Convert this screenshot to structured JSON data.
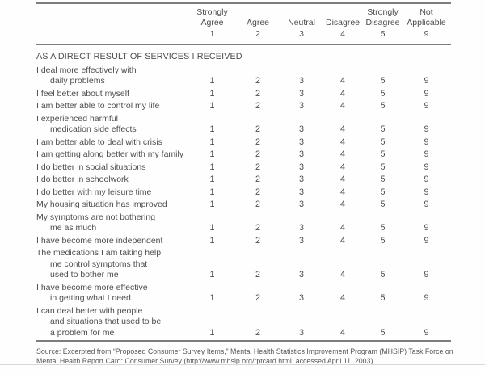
{
  "colors": {
    "text": "#4d4d4d",
    "rule": "#7d7d7d",
    "faint_rule": "#d8d8d8",
    "background": "#fefefe"
  },
  "header": {
    "columns": [
      {
        "label": "Strongly\nAgree",
        "value": "1"
      },
      {
        "label": "Agree",
        "value": "2"
      },
      {
        "label": "Neutral",
        "value": "3"
      },
      {
        "label": "Disagree",
        "value": "4"
      },
      {
        "label": "Strongly\nDisagree",
        "value": "5"
      },
      {
        "label": "Not\nApplicable",
        "value": "9"
      }
    ]
  },
  "section_header": "AS A DIRECT RESULT OF SERVICES I RECEIVED",
  "rows": [
    {
      "label": "I deal more effectively with\ndaily problems",
      "values": [
        "1",
        "2",
        "3",
        "4",
        "5",
        "9"
      ]
    },
    {
      "label": "I feel better about myself",
      "values": [
        "1",
        "2",
        "3",
        "4",
        "5",
        "9"
      ]
    },
    {
      "label": "I am better able to control my life",
      "values": [
        "1",
        "2",
        "3",
        "4",
        "5",
        "9"
      ]
    },
    {
      "label": "I experienced harmful\nmedication side effects",
      "values": [
        "1",
        "2",
        "3",
        "4",
        "5",
        "9"
      ]
    },
    {
      "label": "I am better able to deal with crisis",
      "values": [
        "1",
        "2",
        "3",
        "4",
        "5",
        "9"
      ]
    },
    {
      "label": "I am getting along better with my family",
      "values": [
        "1",
        "2",
        "3",
        "4",
        "5",
        "9"
      ]
    },
    {
      "label": "I do better in social situations",
      "values": [
        "1",
        "2",
        "3",
        "4",
        "5",
        "9"
      ]
    },
    {
      "label": "I do better in schoolwork",
      "values": [
        "1",
        "2",
        "3",
        "4",
        "5",
        "9"
      ]
    },
    {
      "label": "I do better with my leisure time",
      "values": [
        "1",
        "2",
        "3",
        "4",
        "5",
        "9"
      ]
    },
    {
      "label": "My housing situation has improved",
      "values": [
        "1",
        "2",
        "3",
        "4",
        "5",
        "9"
      ]
    },
    {
      "label": "My symptoms are not bothering\nme as much",
      "values": [
        "1",
        "2",
        "3",
        "4",
        "5",
        "9"
      ]
    },
    {
      "label": "I have become more independent",
      "values": [
        "1",
        "2",
        "3",
        "4",
        "5",
        "9"
      ]
    },
    {
      "label": "The medications I am taking help\nme control symptoms that\nused to bother me",
      "values": [
        "1",
        "2",
        "3",
        "4",
        "5",
        "9"
      ]
    },
    {
      "label": "I have become more effective\nin getting what I need",
      "values": [
        "1",
        "2",
        "3",
        "4",
        "5",
        "9"
      ]
    },
    {
      "label": "I can deal better with people\nand situations that used to be\na problem for me",
      "values": [
        "1",
        "2",
        "3",
        "4",
        "5",
        "9"
      ]
    }
  ],
  "source_note": "Source: Excerpted from “Proposed Consumer Survey Items,” Mental Health Statistics Improvement Program (MHSIP) Task Force on\nMental Health Report Card: Consumer Survey (http://www.mhsip.org/rptcard.html, accessed April 11, 2003)."
}
